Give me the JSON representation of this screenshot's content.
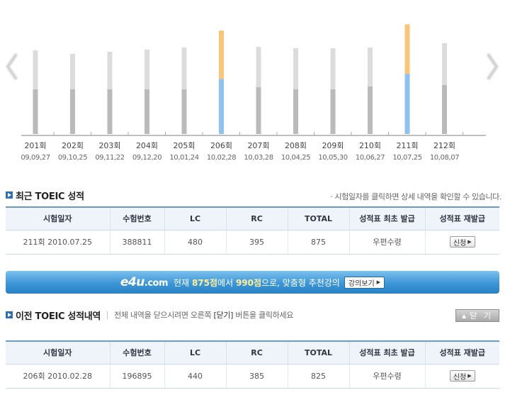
{
  "chart_data": {
    "type": "bar",
    "categories": [
      "201회",
      "202회",
      "203회",
      "204회",
      "205회",
      "206회",
      "207회",
      "208회",
      "209회",
      "210회",
      "211회",
      "212회"
    ],
    "dates": [
      "09,09,27",
      "09,10,25",
      "09,11,22",
      "09,12,20",
      "10,01,24",
      "10,02,28",
      "10,03,28",
      "10,04,25",
      "10,05,30",
      "10,06,27",
      "10,07,25",
      "10,08,07"
    ],
    "series": [
      {
        "name": "LC",
        "values": [
          null,
          null,
          null,
          null,
          null,
          440,
          null,
          null,
          null,
          null,
          480,
          null
        ]
      },
      {
        "name": "RC",
        "values": [
          null,
          null,
          null,
          null,
          null,
          385,
          null,
          null,
          null,
          null,
          395,
          null
        ]
      }
    ],
    "ylim": [
      0,
      990
    ],
    "colors": {
      "lc": "#8ec2f1",
      "rc": "#f9c679",
      "track_lower": "#bababa",
      "track_upper": "#dcdcdc",
      "axis": "#aaaaaa"
    }
  },
  "nav": {
    "prev_icon": "chevron-left-icon",
    "next_icon": "chevron-right-icon"
  },
  "recent": {
    "title": "최근 TOEIC 성적",
    "note": "· 시험일자를 클릭하면 상세 내역을 확인할 수 있습니다.",
    "headers": [
      "시험일자",
      "수험번호",
      "LC",
      "RC",
      "TOTAL",
      "성적표 최초 발급",
      "성적표 재발급"
    ],
    "rows": [
      {
        "date": "211회  2010.07.25",
        "exam_no": "388811",
        "lc": "480",
        "rc": "395",
        "total": "875",
        "issue": "우편수령",
        "reissue": "신청"
      }
    ]
  },
  "banner": {
    "logo": "e4u",
    "logo_suffix": ".com",
    "text_1": "현재",
    "score_now": "875점",
    "text_2": "에서",
    "score_target": "990점",
    "text_3": "으로, 맞춤형 추천강의",
    "button": "강의보기"
  },
  "previous": {
    "title": "이전 TOEIC 성적내역",
    "desc_1": "전체 내역을 닫으시려면 오른쪽",
    "desc_key": "[닫기]",
    "desc_2": "버튼을 클릭하세요",
    "close_label": "닫 기",
    "headers": [
      "시험일자",
      "수험번호",
      "LC",
      "RC",
      "TOTAL",
      "성적표 최초 발급",
      "성적표 재발급"
    ],
    "rows": [
      {
        "date": "206회  2010.02.28",
        "exam_no": "196895",
        "lc": "440",
        "rc": "385",
        "total": "825",
        "issue": "우편수령",
        "reissue": "신청"
      }
    ]
  }
}
